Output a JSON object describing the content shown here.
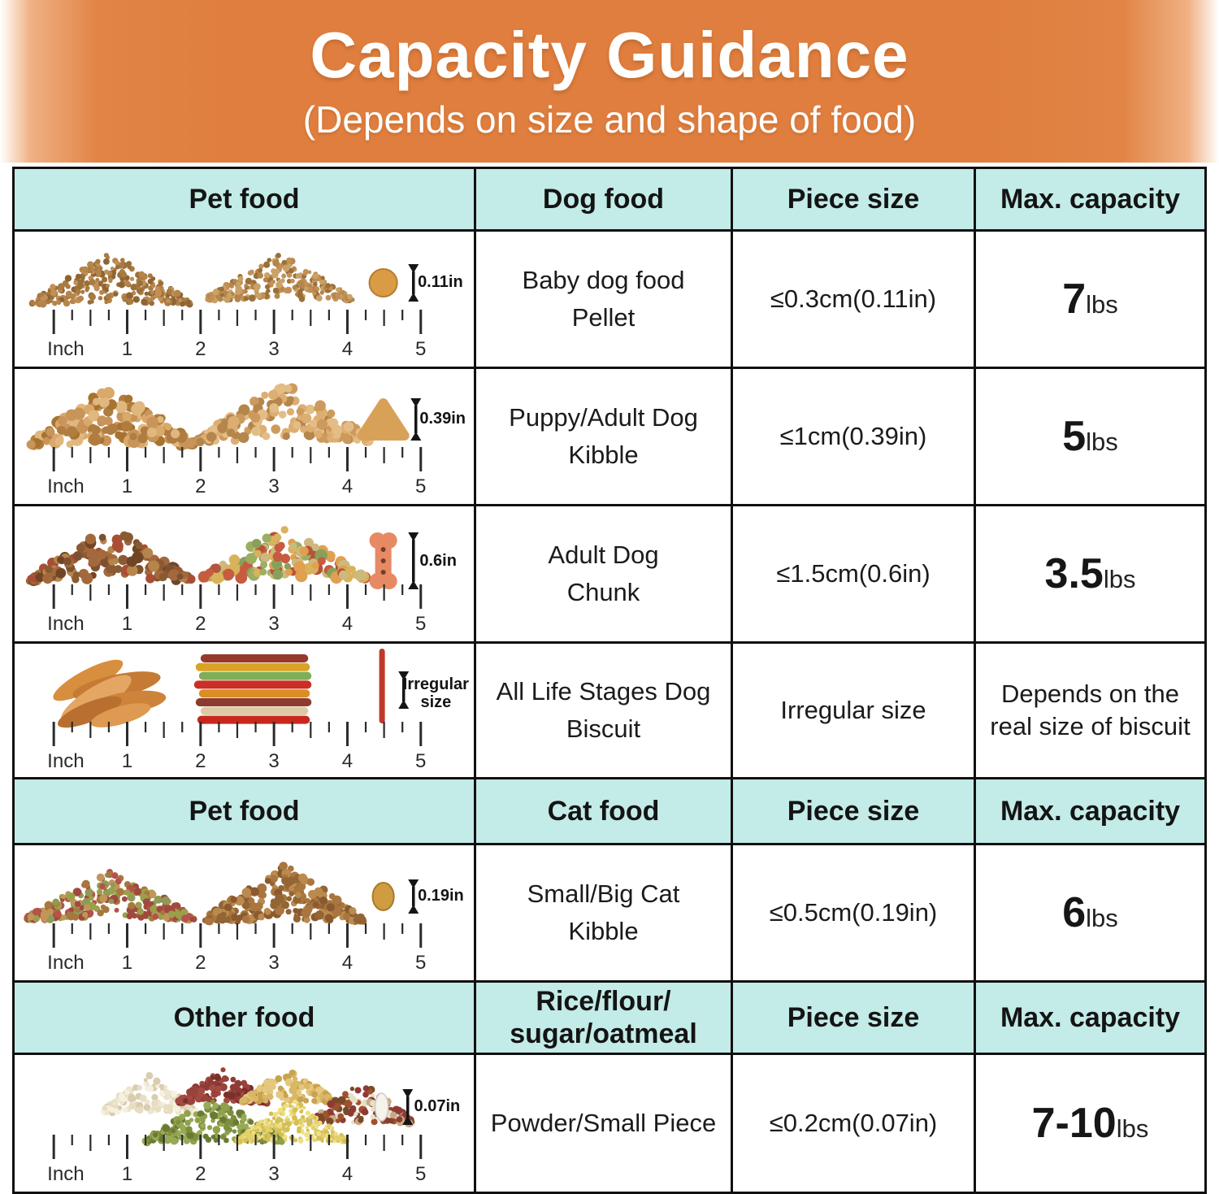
{
  "banner": {
    "title": "Capacity Guidance",
    "subtitle": "(Depends on size and shape of food)"
  },
  "ruler": {
    "unit_label": "Inch",
    "marks": [
      "1",
      "2",
      "3",
      "4",
      "5"
    ]
  },
  "sections": [
    {
      "header": {
        "c1": "Pet food",
        "c2": "Dog food",
        "c3": "Piece size",
        "c4": "Max. capacity"
      },
      "rows": [
        {
          "food": "Baby dog food\nPellet",
          "size": "≤0.3cm(0.11in)",
          "cap_value": "7",
          "cap_unit": "lbs",
          "measure": "0.11in"
        },
        {
          "food": "Puppy/Adult Dog\nKibble",
          "size": "≤1cm(0.39in)",
          "cap_value": "5",
          "cap_unit": "lbs",
          "measure": "0.39in"
        },
        {
          "food": "Adult Dog\nChunk",
          "size": "≤1.5cm(0.6in)",
          "cap_value": "3.5",
          "cap_unit": "lbs",
          "measure": "0.6in"
        },
        {
          "food": "All Life Stages Dog\nBiscuit",
          "size": "Irregular size",
          "cap_text": "Depends on the real size of biscuit",
          "measure": "Irregular size"
        }
      ]
    },
    {
      "header": {
        "c1": "Pet food",
        "c2": "Cat food",
        "c3": "Piece size",
        "c4": "Max. capacity"
      },
      "rows": [
        {
          "food": "Small/Big Cat\nKibble",
          "size": "≤0.5cm(0.19in)",
          "cap_value": "6",
          "cap_unit": "lbs",
          "measure": "0.19in"
        }
      ]
    },
    {
      "header": {
        "c1": "Other food",
        "c2": "Rice/flour/\nsugar/oatmeal",
        "c3": "Piece size",
        "c4": "Max. capacity"
      },
      "rows": [
        {
          "food": "Powder/Small Piece",
          "size": "≤0.2cm(0.07in)",
          "cap_value": "7-10",
          "cap_unit": "lbs",
          "measure": "0.07in"
        }
      ]
    }
  ]
}
